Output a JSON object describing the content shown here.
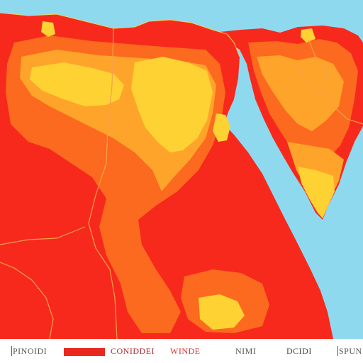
{
  "map": {
    "colors": {
      "sea": "#8fd9ef",
      "hot": "#f7291c",
      "warm": "#fb6a1e",
      "mid": "#ffa42a",
      "cool": "#ffd234",
      "border": "#f6a04a",
      "coast": "#f4d25a"
    }
  },
  "legend": {
    "items": [
      {
        "label": "PINOIDI",
        "color": "#555555"
      },
      {
        "label": "",
        "color": "#e8281e"
      },
      {
        "label": "CONIDDEI",
        "color": "#b0262a"
      },
      {
        "label": "WINDE",
        "color": "#d4332b"
      },
      {
        "label": "NIMI",
        "color": "#555555"
      },
      {
        "label": "DCIDI",
        "color": "#444444"
      },
      {
        "label": "SPUN",
        "color": "#555555"
      }
    ]
  }
}
